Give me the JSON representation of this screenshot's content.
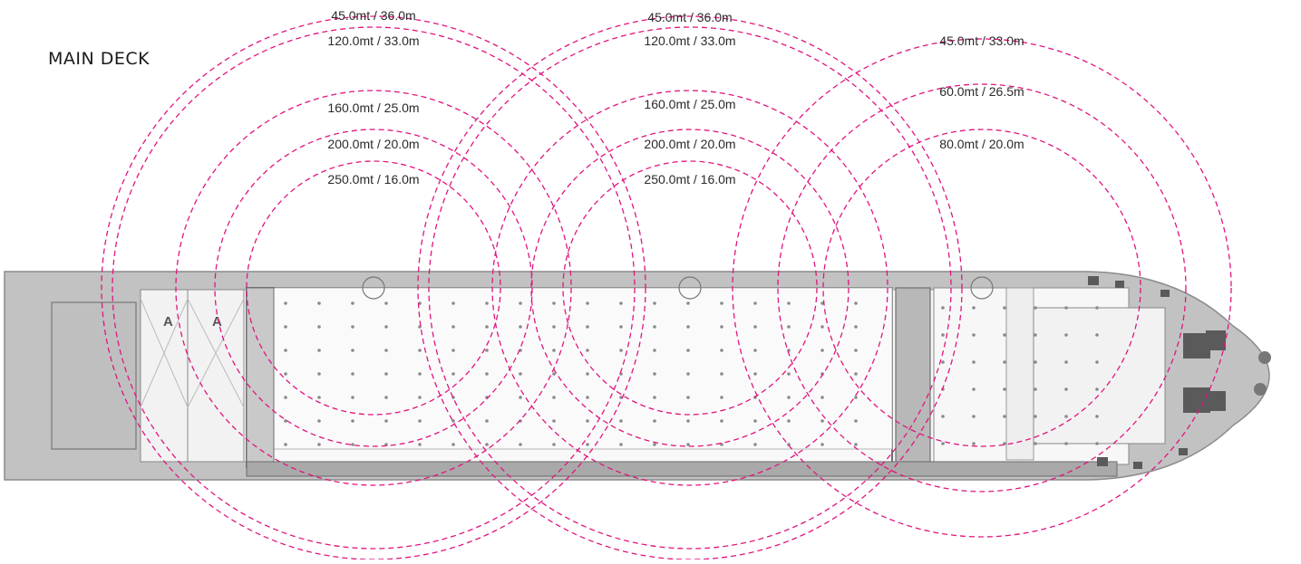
{
  "title": "MAIN DECK",
  "colors": {
    "reach_circle": "#e0157f",
    "hull": "#b9b9b9",
    "hull_dark": "#8e8e8e",
    "deck": "#f4f4f4"
  },
  "cranes": [
    {
      "name": "crane-1",
      "rings": [
        {
          "label": "45.0mt / 36.0m"
        },
        {
          "label": "120.0mt / 33.0m"
        },
        {
          "label": "160.0mt / 25.0m"
        },
        {
          "label": "200.0mt / 20.0m"
        },
        {
          "label": "250.0mt / 16.0m"
        }
      ]
    },
    {
      "name": "crane-2",
      "rings": [
        {
          "label": "45.0mt / 36.0m"
        },
        {
          "label": "120.0mt / 33.0m"
        },
        {
          "label": "160.0mt / 25.0m"
        },
        {
          "label": "200.0mt / 20.0m"
        },
        {
          "label": "250.0mt / 16.0m"
        }
      ]
    },
    {
      "name": "crane-3",
      "rings": [
        {
          "label": "45.0mt / 33.0m"
        },
        {
          "label": "60.0mt / 26.5m"
        },
        {
          "label": "80.0mt / 20.0m"
        }
      ]
    }
  ],
  "hatch_marks": [
    "A",
    "A"
  ]
}
